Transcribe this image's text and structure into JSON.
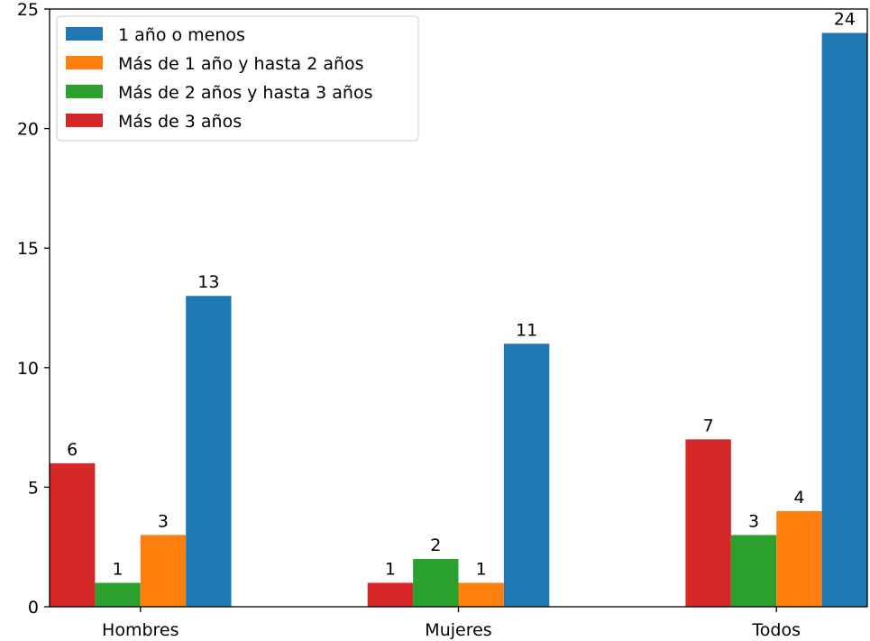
{
  "chart_data": {
    "type": "bar",
    "categories": [
      "Hombres",
      "Mujeres",
      "Todos"
    ],
    "series": [
      {
        "name": "Más de 3 años",
        "color": "#d62728",
        "values": [
          6,
          1,
          7
        ]
      },
      {
        "name": "Más de 2 años y hasta 3 años",
        "color": "#2ca02c",
        "values": [
          1,
          2,
          3
        ]
      },
      {
        "name": "Más de 1 año y hasta 2 años",
        "color": "#ff7f0e",
        "values": [
          3,
          1,
          4
        ]
      },
      {
        "name": "1 año o menos",
        "color": "#1f77b4",
        "values": [
          13,
          11,
          24
        ]
      }
    ],
    "legend_order": [
      "1 año o menos",
      "Más de 1 año y hasta 2 años",
      "Más de 2 años y hasta 3 años",
      "Más de 3 años"
    ],
    "yticks": [
      0,
      5,
      10,
      15,
      20,
      25
    ],
    "ylim": [
      0,
      25
    ],
    "title": "",
    "xlabel": "",
    "ylabel": "",
    "grid": false,
    "legend_position": "top-left",
    "data_labels": true
  }
}
